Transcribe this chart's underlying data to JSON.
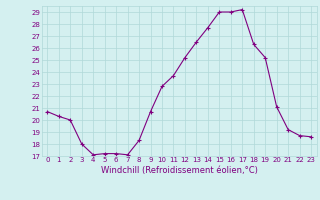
{
  "x": [
    0,
    1,
    2,
    3,
    4,
    5,
    6,
    7,
    8,
    9,
    10,
    11,
    12,
    13,
    14,
    15,
    16,
    17,
    18,
    19,
    20,
    21,
    22,
    23
  ],
  "y": [
    20.7,
    20.3,
    20.0,
    18.0,
    17.1,
    17.2,
    17.2,
    17.1,
    18.3,
    20.7,
    22.8,
    23.7,
    25.2,
    26.5,
    27.7,
    29.0,
    29.0,
    29.2,
    26.3,
    25.2,
    21.1,
    19.2,
    18.7,
    18.6
  ],
  "ylim": [
    17,
    29.5
  ],
  "xlim": [
    -0.5,
    23.5
  ],
  "yticks": [
    17,
    18,
    19,
    20,
    21,
    22,
    23,
    24,
    25,
    26,
    27,
    28,
    29
  ],
  "xticks": [
    0,
    1,
    2,
    3,
    4,
    5,
    6,
    7,
    8,
    9,
    10,
    11,
    12,
    13,
    14,
    15,
    16,
    17,
    18,
    19,
    20,
    21,
    22,
    23
  ],
  "xlabel": "Windchill (Refroidissement éolien,°C)",
  "line_color": "#800080",
  "marker": "+",
  "bg_color": "#d4f0f0",
  "grid_color": "#b0d8d8",
  "tick_color": "#800080",
  "label_color": "#800080",
  "tick_fontsize": 5,
  "xlabel_fontsize": 6
}
